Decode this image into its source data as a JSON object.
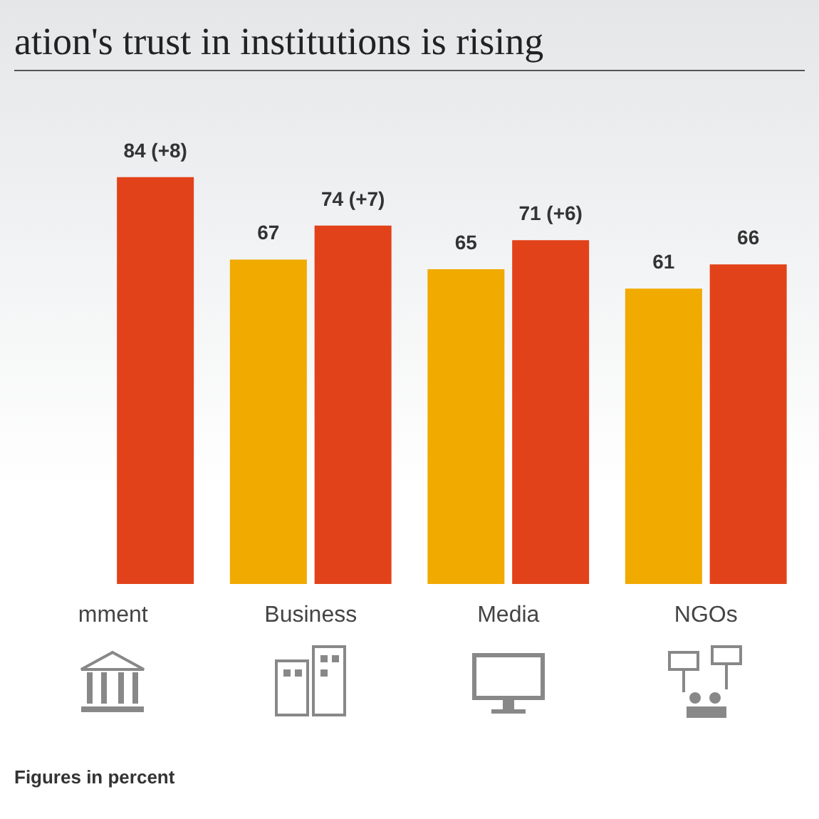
{
  "chart_data": {
    "type": "bar",
    "title": "ation's trust in institutions is rising",
    "categories": [
      "mment",
      "Business",
      "Media",
      "NGOs"
    ],
    "series": [
      {
        "color": "#f0aa00",
        "values": [
          null,
          67,
          65,
          61
        ],
        "value_labels": [
          null,
          "67",
          "65",
          "61"
        ]
      },
      {
        "color": "#e2421a",
        "values": [
          84,
          74,
          71,
          66
        ],
        "value_labels": [
          "84 (+8)",
          "74 (+7)",
          "71 (+6)",
          "66"
        ]
      }
    ],
    "annotations": [
      "Figures in percent"
    ],
    "data_labels": false
  }
}
